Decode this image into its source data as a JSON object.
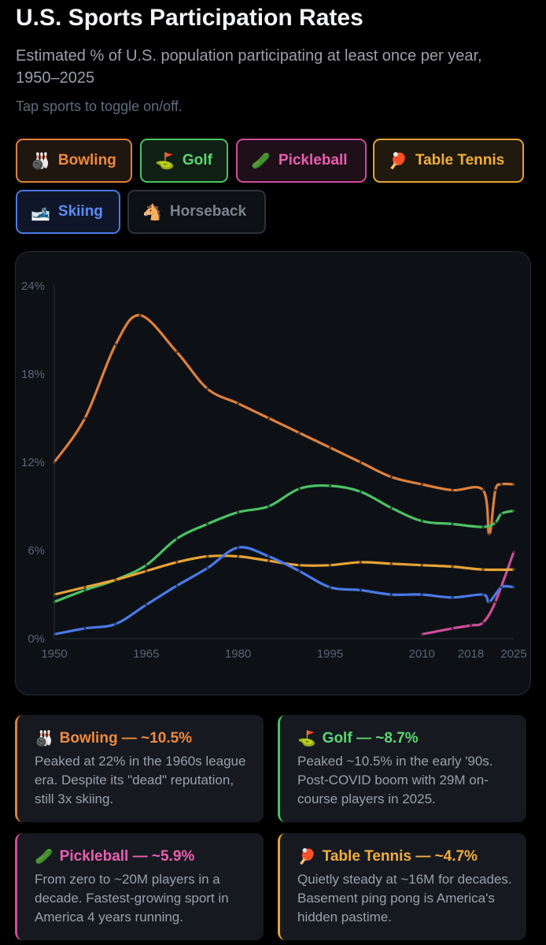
{
  "header": {
    "title": "U.S. Sports Participation Rates",
    "subtitle": "Estimated % of U.S. population participating at least once per year, 1950–2025",
    "hint": "Tap sports to toggle on/off."
  },
  "toggles": [
    {
      "emoji": "🎳",
      "label": "Bowling",
      "active": true,
      "color": "#f08a3e"
    },
    {
      "emoji": "⛳",
      "label": "Golf",
      "active": true,
      "color": "#5bd673"
    },
    {
      "emoji": "🥒",
      "label": "Pickleball",
      "active": true,
      "color": "#ea5eaf"
    },
    {
      "emoji": "🏓",
      "label": "Table Tennis",
      "active": true,
      "color": "#f2ad3e"
    },
    {
      "emoji": "🎿",
      "label": "Skiing",
      "active": true,
      "color": "#5b8cf5"
    },
    {
      "emoji": "🐴",
      "label": "Horseback",
      "active": false,
      "color": "#7b8390"
    }
  ],
  "chart_data": {
    "type": "line",
    "title": "",
    "xlabel": "",
    "ylabel": "",
    "ylim": [
      0,
      24
    ],
    "xlim": [
      1950,
      2025
    ],
    "y_ticks": [
      0,
      6,
      12,
      18,
      24
    ],
    "y_tick_labels": [
      "0%",
      "6%",
      "12%",
      "18%",
      "24%"
    ],
    "x_ticks": [
      1950,
      1965,
      1980,
      1995,
      2010,
      2018,
      2025
    ],
    "x_tick_labels": [
      "1950",
      "1965",
      "1980",
      "1995",
      "2010",
      "2018",
      "2025"
    ],
    "grid": false,
    "series": [
      {
        "name": "Bowling",
        "color": "#e0803a",
        "x": [
          1950,
          1955,
          1960,
          1964,
          1970,
          1975,
          1980,
          1985,
          1990,
          1995,
          2000,
          2005,
          2010,
          2015,
          2020,
          2021,
          2022,
          2023,
          2025
        ],
        "y": [
          12.0,
          15.0,
          20.0,
          22.0,
          19.5,
          17.0,
          16.0,
          15.0,
          14.0,
          13.0,
          12.0,
          11.0,
          10.5,
          10.1,
          10.1,
          7.1,
          10.1,
          10.5,
          10.5
        ]
      },
      {
        "name": "Golf",
        "color": "#4bc264",
        "x": [
          1950,
          1955,
          1960,
          1965,
          1970,
          1975,
          1980,
          1985,
          1990,
          1995,
          2000,
          2005,
          2010,
          2015,
          2020,
          2022,
          2023,
          2025
        ],
        "y": [
          2.5,
          3.3,
          4.0,
          5.0,
          6.8,
          7.8,
          8.6,
          9.0,
          10.2,
          10.4,
          10.0,
          8.9,
          8.0,
          7.8,
          7.6,
          7.9,
          8.5,
          8.7
        ]
      },
      {
        "name": "Pickleball",
        "color": "#d04d98",
        "x": [
          2010,
          2015,
          2018,
          2020,
          2022,
          2025
        ],
        "y": [
          0.3,
          0.7,
          0.9,
          1.1,
          2.5,
          5.9
        ]
      },
      {
        "name": "Table Tennis",
        "color": "#e8a334",
        "x": [
          1950,
          1955,
          1960,
          1965,
          1970,
          1975,
          1980,
          1985,
          1990,
          1995,
          2000,
          2005,
          2010,
          2015,
          2020,
          2025
        ],
        "y": [
          3.0,
          3.5,
          4.0,
          4.6,
          5.2,
          5.6,
          5.6,
          5.3,
          5.0,
          5.0,
          5.2,
          5.1,
          5.0,
          4.9,
          4.7,
          4.7
        ]
      },
      {
        "name": "Skiing",
        "color": "#4a79e8",
        "x": [
          1950,
          1955,
          1960,
          1965,
          1970,
          1975,
          1980,
          1985,
          1990,
          1995,
          2000,
          2005,
          2010,
          2015,
          2020,
          2021,
          2023,
          2025
        ],
        "y": [
          0.3,
          0.7,
          1.0,
          2.3,
          3.6,
          4.8,
          6.2,
          5.6,
          4.6,
          3.5,
          3.3,
          3.0,
          3.0,
          2.8,
          3.0,
          2.5,
          3.5,
          3.5
        ]
      }
    ]
  },
  "cards": [
    {
      "emoji": "🎳",
      "heading": "Bowling — ~10.5%",
      "body": "Peaked at 22% in the 1960s league era. Despite its \"dead\" reputation, still 3x skiing."
    },
    {
      "emoji": "⛳",
      "heading": "Golf — ~8.7%",
      "body": "Peaked ~10.5% in the early '90s. Post-COVID boom with 29M on-course players in 2025."
    },
    {
      "emoji": "🥒",
      "heading": "Pickleball — ~5.9%",
      "body": "From zero to ~20M players in a decade. Fastest-growing sport in America 4 years running."
    },
    {
      "emoji": "🏓",
      "heading": "Table Tennis — ~4.7%",
      "body": "Quietly steady at ~16M for decades. Basement ping pong is America's hidden pastime."
    }
  ]
}
